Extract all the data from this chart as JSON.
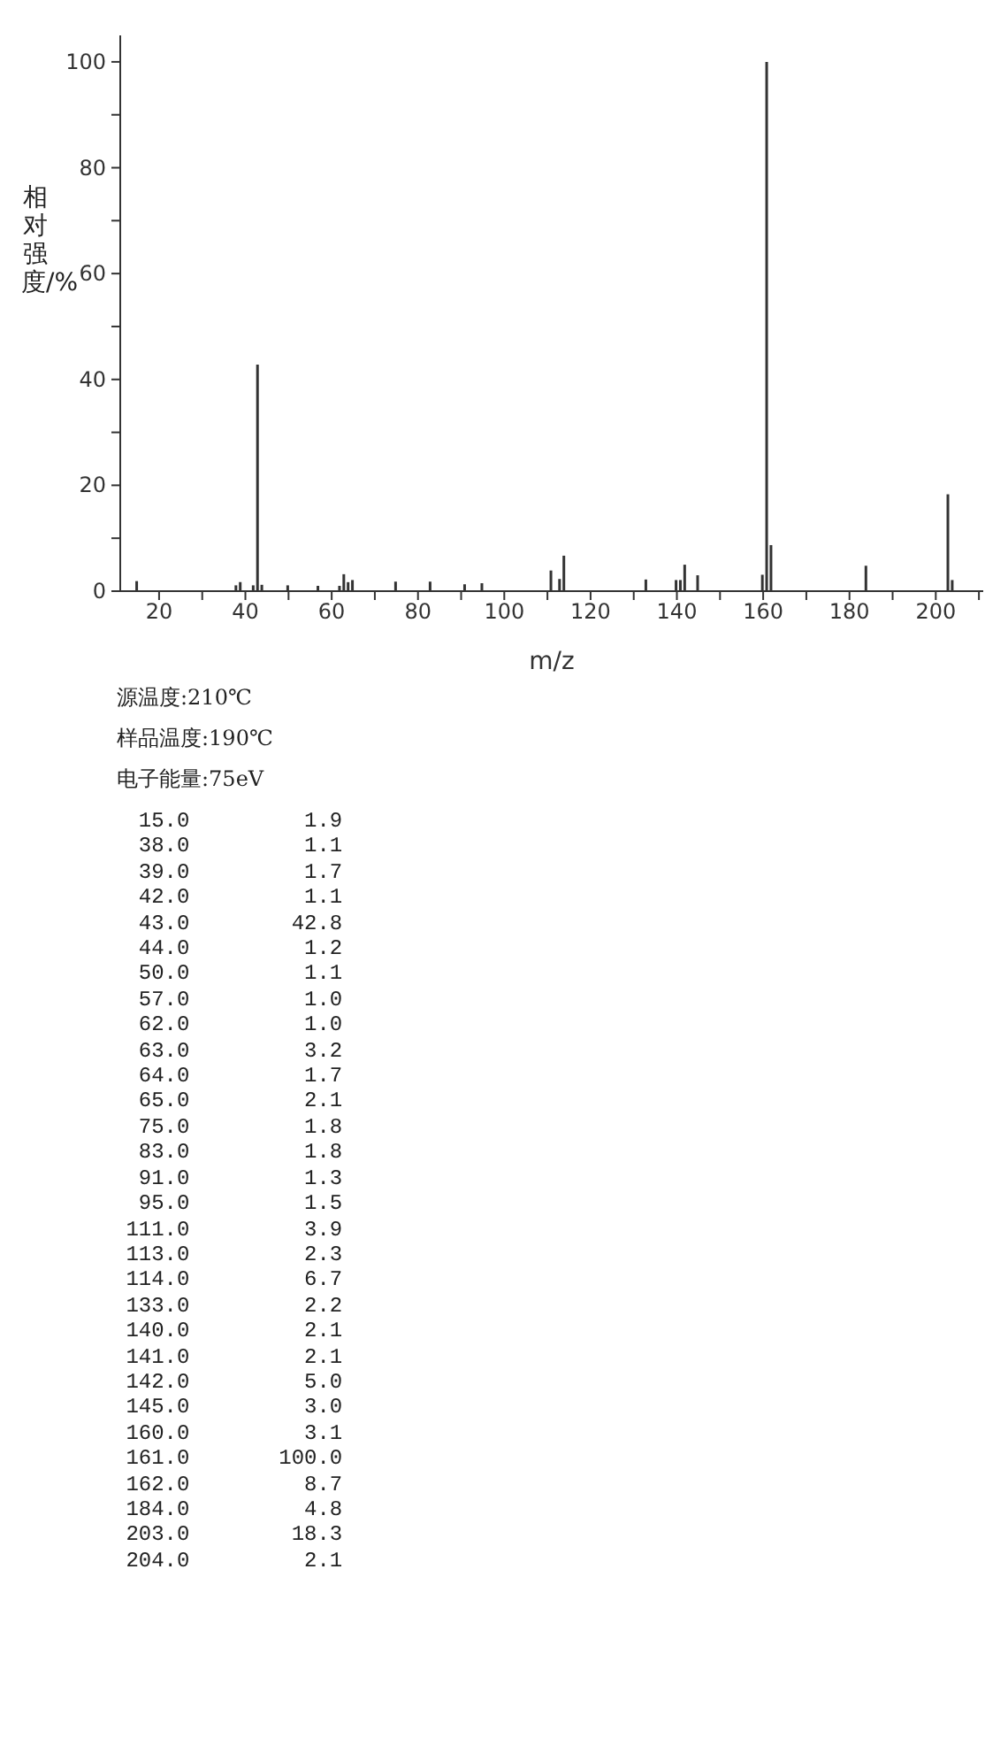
{
  "chart_data": {
    "type": "bar",
    "xlabel": "m/z",
    "ylabel": "相对强度/%",
    "x": [
      15,
      38,
      39,
      42,
      43,
      44,
      50,
      57,
      62,
      63,
      64,
      65,
      75,
      83,
      91,
      95,
      111,
      113,
      114,
      133,
      140,
      141,
      142,
      145,
      160,
      161,
      162,
      184,
      203,
      204
    ],
    "values": [
      1.9,
      1.1,
      1.7,
      1.1,
      42.8,
      1.2,
      1.1,
      1.0,
      1.0,
      3.2,
      1.7,
      2.1,
      1.8,
      1.8,
      1.3,
      1.5,
      3.9,
      2.3,
      6.7,
      2.2,
      2.1,
      2.1,
      5.0,
      3.0,
      3.1,
      100.0,
      8.7,
      4.8,
      18.3,
      2.1
    ],
    "color": "#333333",
    "xlim": [
      11,
      211
    ],
    "xticks": [
      20,
      {
        "value": 30,
        "label": null
      },
      40,
      {
        "value": 50,
        "label": null
      },
      60,
      {
        "value": 70,
        "label": null
      },
      80,
      {
        "value": 90,
        "label": null
      },
      100,
      {
        "value": 110,
        "label": null
      },
      120,
      {
        "value": 130,
        "label": null
      },
      140,
      {
        "value": 150,
        "label": null
      },
      160,
      {
        "value": 170,
        "label": null
      },
      180,
      {
        "value": 190,
        "label": null
      },
      200,
      {
        "value": 210,
        "label": null
      }
    ],
    "ylim": [
      0,
      105
    ],
    "yticks": [
      0,
      {
        "value": 10,
        "label": null
      },
      20,
      {
        "value": 30,
        "label": null
      },
      40,
      {
        "value": 50,
        "label": null
      },
      60,
      {
        "value": 70,
        "label": null
      },
      80,
      {
        "value": 90,
        "label": null
      },
      100
    ],
    "annotations": [
      "源温度:210℃",
      "样品温度:190℃",
      "电子能量:75eV",
      "  15.0         1.9",
      "  38.0         1.1",
      "  39.0         1.7",
      "  42.0         1.1",
      "  43.0        42.8",
      "  44.0         1.2",
      "  50.0         1.1",
      "  57.0         1.0",
      "  62.0         1.0",
      "  63.0         3.2",
      "  64.0         1.7",
      "  65.0         2.1",
      "  75.0         1.8",
      "  83.0         1.8",
      "  91.0         1.3",
      "  95.0         1.5",
      " 111.0         3.9",
      " 113.0         2.3",
      " 114.0         6.7",
      " 133.0         2.2",
      " 140.0         2.1",
      " 141.0         2.1",
      " 142.0         5.0",
      " 145.0         3.0",
      " 160.0         3.1",
      " 161.0       100.0",
      " 162.0         8.7",
      " 184.0         4.8",
      " 203.0        18.3",
      " 204.0         2.1"
    ]
  }
}
